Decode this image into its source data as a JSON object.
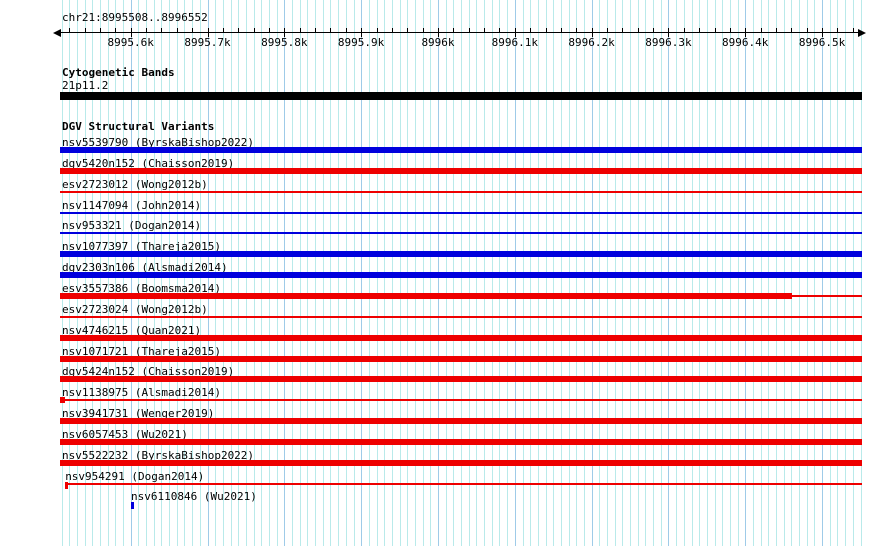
{
  "header": {
    "region": "chr21:8995508..8996552",
    "chrom": "chr21",
    "start": 8995508,
    "end": 8996552
  },
  "ruler": {
    "major_ticks": [
      {
        "bp": 8995600,
        "label": "8995.6k"
      },
      {
        "bp": 8995700,
        "label": "8995.7k"
      },
      {
        "bp": 8995800,
        "label": "8995.8k"
      },
      {
        "bp": 8995900,
        "label": "8995.9k"
      },
      {
        "bp": 8996000,
        "label": "8996k"
      },
      {
        "bp": 8996100,
        "label": "8996.1k"
      },
      {
        "bp": 8996200,
        "label": "8996.2k"
      },
      {
        "bp": 8996300,
        "label": "8996.3k"
      },
      {
        "bp": 8996400,
        "label": "8996.4k"
      },
      {
        "bp": 8996500,
        "label": "8996.5k"
      }
    ],
    "minor_grid_step_bp": 10,
    "ruler_tick_step_bp": 20
  },
  "colors": {
    "variant_red": "#ee0000",
    "variant_blue": "#0000dd",
    "cytoband_black": "#000000",
    "grid_minor": "#b9eaea",
    "grid_major": "#9fcbe8"
  },
  "cytogenetic": {
    "title": "Cytogenetic Bands",
    "band": {
      "name": "21p11.2",
      "color": "#000000",
      "from": 0,
      "to": 1
    }
  },
  "dgv": {
    "title": "DGV Structural Variants",
    "tracks": [
      {
        "id": "nsv5539790",
        "study": "ByrskaBishop2022",
        "label": "nsv5539790 (ByrskaBishop2022)",
        "color": "#0000dd",
        "label_offset": 0,
        "segments": [
          {
            "kind": "thick",
            "from": 0,
            "to": 1
          }
        ]
      },
      {
        "id": "dgv5420n152",
        "study": "Chaisson2019",
        "label": "dgv5420n152 (Chaisson2019)",
        "color": "#ee0000",
        "label_offset": 0,
        "segments": [
          {
            "kind": "thick",
            "from": 0,
            "to": 1
          }
        ]
      },
      {
        "id": "esv2723012",
        "study": "Wong2012b",
        "label": "esv2723012 (Wong2012b)",
        "color": "#ee0000",
        "label_offset": 0,
        "segments": [
          {
            "kind": "thin",
            "from": 0,
            "to": 1
          }
        ]
      },
      {
        "id": "nsv1147094",
        "study": "John2014",
        "label": "nsv1147094 (John2014)",
        "color": "#0000dd",
        "label_offset": 0,
        "segments": [
          {
            "kind": "thin",
            "from": 0,
            "to": 1
          }
        ]
      },
      {
        "id": "nsv953321",
        "study": "Dogan2014",
        "label": "nsv953321 (Dogan2014)",
        "color": "#0000dd",
        "label_offset": 0,
        "segments": [
          {
            "kind": "thin",
            "from": 0,
            "to": 1
          }
        ]
      },
      {
        "id": "nsv1077397",
        "study": "Thareja2015",
        "label": "nsv1077397 (Thareja2015)",
        "color": "#0000dd",
        "label_offset": 0,
        "segments": [
          {
            "kind": "thick",
            "from": 0,
            "to": 1
          }
        ]
      },
      {
        "id": "dgv2303n106",
        "study": "Alsmadi2014",
        "label": "dgv2303n106 (Alsmadi2014)",
        "color": "#0000dd",
        "label_offset": 0,
        "segments": [
          {
            "kind": "thick",
            "from": 0,
            "to": 1
          }
        ]
      },
      {
        "id": "esv3557386",
        "study": "Boomsma2014",
        "label": "esv3557386 (Boomsma2014)",
        "color": "#ee0000",
        "label_offset": 0,
        "segments": [
          {
            "kind": "thick",
            "from": 0,
            "to": 0.913
          },
          {
            "kind": "thin",
            "from": 0.913,
            "to": 1
          }
        ]
      },
      {
        "id": "esv2723024",
        "study": "Wong2012b",
        "label": "esv2723024 (Wong2012b)",
        "color": "#ee0000",
        "label_offset": 0,
        "segments": [
          {
            "kind": "thin",
            "from": 0,
            "to": 1
          }
        ]
      },
      {
        "id": "nsv4746215",
        "study": "Quan2021",
        "label": "nsv4746215 (Quan2021)",
        "color": "#ee0000",
        "label_offset": 0,
        "segments": [
          {
            "kind": "thick",
            "from": 0,
            "to": 1
          }
        ]
      },
      {
        "id": "nsv1071721",
        "study": "Thareja2015",
        "label": "nsv1071721 (Thareja2015)",
        "color": "#ee0000",
        "label_offset": 0,
        "segments": [
          {
            "kind": "thick",
            "from": 0,
            "to": 1
          }
        ]
      },
      {
        "id": "dgv5424n152",
        "study": "Chaisson2019",
        "label": "dgv5424n152 (Chaisson2019)",
        "color": "#ee0000",
        "label_offset": 0,
        "segments": [
          {
            "kind": "thick",
            "from": 0,
            "to": 1
          }
        ]
      },
      {
        "id": "nsv1138975",
        "study": "Alsmadi2014",
        "label": "nsv1138975 (Alsmadi2014)",
        "color": "#ee0000",
        "label_offset": 0,
        "segments": [
          {
            "kind": "thick",
            "from": 0,
            "to": 0.006
          },
          {
            "kind": "thin",
            "from": 0.006,
            "to": 1
          }
        ]
      },
      {
        "id": "nsv3941731",
        "study": "Wenger2019",
        "label": "nsv3941731 (Wenger2019)",
        "color": "#ee0000",
        "label_offset": 0,
        "segments": [
          {
            "kind": "thick",
            "from": 0,
            "to": 1
          }
        ]
      },
      {
        "id": "nsv6057453",
        "study": "Wu2021",
        "label": "nsv6057453 (Wu2021)",
        "color": "#ee0000",
        "label_offset": 0,
        "segments": [
          {
            "kind": "thick",
            "from": 0,
            "to": 1
          }
        ]
      },
      {
        "id": "nsv5522232",
        "study": "ByrskaBishop2022",
        "label": "nsv5522232 (ByrskaBishop2022)",
        "color": "#ee0000",
        "label_offset": 0,
        "segments": [
          {
            "kind": "thick",
            "from": 0,
            "to": 1
          }
        ]
      },
      {
        "id": "nsv954291",
        "study": "Dogan2014",
        "label": "nsv954291 (Dogan2014)",
        "color": "#ee0000",
        "label_offset": 0.004,
        "segments": [
          {
            "kind": "tick",
            "from": 0.0062,
            "to": 0.0062
          },
          {
            "kind": "thin",
            "from": 0.0062,
            "to": 1
          }
        ]
      },
      {
        "id": "nsv6110846",
        "study": "Wu2021",
        "label": "nsv6110846 (Wu2021)",
        "color": "#0000dd",
        "label_offset": 0.086,
        "segments": [
          {
            "kind": "tick",
            "from": 0.0885,
            "to": 0.0885
          }
        ]
      }
    ]
  }
}
